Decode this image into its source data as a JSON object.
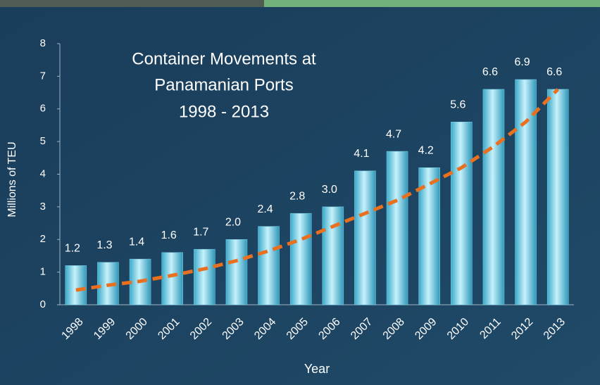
{
  "chart_data": {
    "type": "bar",
    "title": [
      "Container Movements at",
      "Panamanian Ports",
      "1998 - 2013"
    ],
    "x_label": "Year",
    "y_label": "Millions of TEU",
    "categories": [
      "1998",
      "1999",
      "2000",
      "2001",
      "2002",
      "2003",
      "2004",
      "2005",
      "2006",
      "2007",
      "2008",
      "2009",
      "2010",
      "2011",
      "2012",
      "2013"
    ],
    "values": [
      1.2,
      1.3,
      1.4,
      1.6,
      1.7,
      2.0,
      2.4,
      2.8,
      3.0,
      4.1,
      4.7,
      4.2,
      5.6,
      6.6,
      6.9,
      6.6
    ],
    "value_labels": [
      "1.2",
      "1.3",
      "1.4",
      "1.6",
      "1.7",
      "2.0",
      "2.4",
      "2.8",
      "3.0",
      "4.1",
      "4.7",
      "4.2",
      "5.6",
      "6.6",
      "6.9",
      "6.6"
    ],
    "color": "#7fd8ec",
    "trendline": {
      "color": "#e8701e",
      "values": [
        0.45,
        0.6,
        0.72,
        0.9,
        1.1,
        1.35,
        1.65,
        2.0,
        2.4,
        2.8,
        3.2,
        3.7,
        4.2,
        4.85,
        5.6,
        6.6
      ]
    },
    "ylim": [
      0,
      8
    ],
    "yticks": [
      0,
      1,
      2,
      3,
      4,
      5,
      6,
      7,
      8
    ],
    "grid": false
  }
}
